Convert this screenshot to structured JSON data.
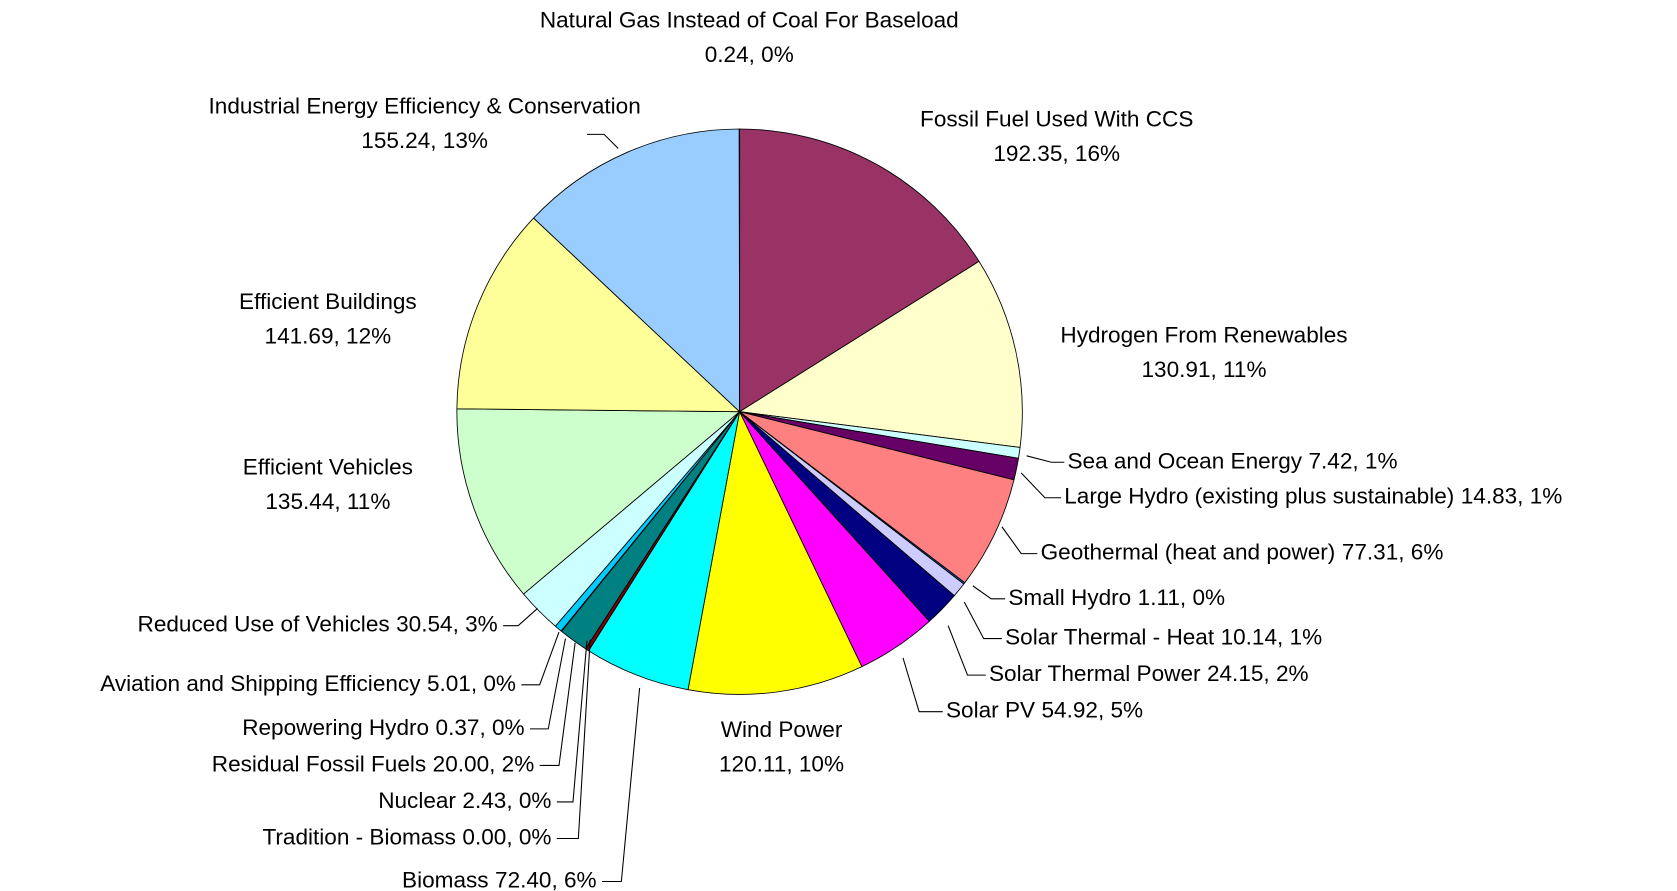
{
  "chart_data": {
    "type": "pie",
    "categories": [
      "Fossil Fuel Used With CCS",
      "Hydrogen From Renewables",
      "Sea and Ocean Energy",
      "Large Hydro (existing plus sustainable)",
      "Geothermal (heat and power)",
      "Small Hydro",
      "Solar Thermal - Heat",
      "Solar Thermal Power",
      "Solar PV",
      "Wind Power",
      "Biomass",
      "Tradition -  Biomass",
      "Nuclear",
      "Residual Fossil Fuels",
      "Repowering Hydro",
      "Aviation and Shipping Efficiency",
      "Reduced Use of Vehicles",
      "Efficient Vehicles",
      "Efficient Buildings",
      "Industrial Energy Efficiency & Conservation",
      "Natural Gas Instead of Coal For Baseload"
    ],
    "values": [
      192.35,
      130.91,
      7.42,
      14.83,
      77.31,
      1.11,
      10.14,
      24.15,
      54.92,
      120.11,
      72.4,
      0.0,
      2.43,
      20.0,
      0.37,
      5.01,
      30.54,
      135.44,
      141.69,
      155.24,
      0.24
    ],
    "value_labels": [
      "192.35, 16%",
      "130.91, 11%",
      "7.42, 1%",
      "14.83, 1%",
      "77.31, 6%",
      "1.11, 0%",
      "10.14, 1%",
      "24.15, 2%",
      "54.92, 5%",
      "120.11, 10%",
      "72.40, 6%",
      "0.00, 0%",
      "2.43, 0%",
      "20.00, 2%",
      "0.37, 0%",
      "5.01, 0%",
      "30.54, 3%",
      "135.44, 11%",
      "141.69, 12%",
      "155.24, 13%",
      "0.24, 0%"
    ],
    "colors": [
      "#993366",
      "#FFFFCC",
      "#CCFFFF",
      "#660066",
      "#FF8080",
      "#0066CC",
      "#CCCCFF",
      "#000080",
      "#FF00FF",
      "#FFFF00",
      "#00FFFF",
      "#800080",
      "#800000",
      "#008080",
      "#0000FF",
      "#00CCFF",
      "#CCFFFF",
      "#CCFFCC",
      "#FFFF99",
      "#99CCFF",
      "#FF99CC"
    ]
  }
}
